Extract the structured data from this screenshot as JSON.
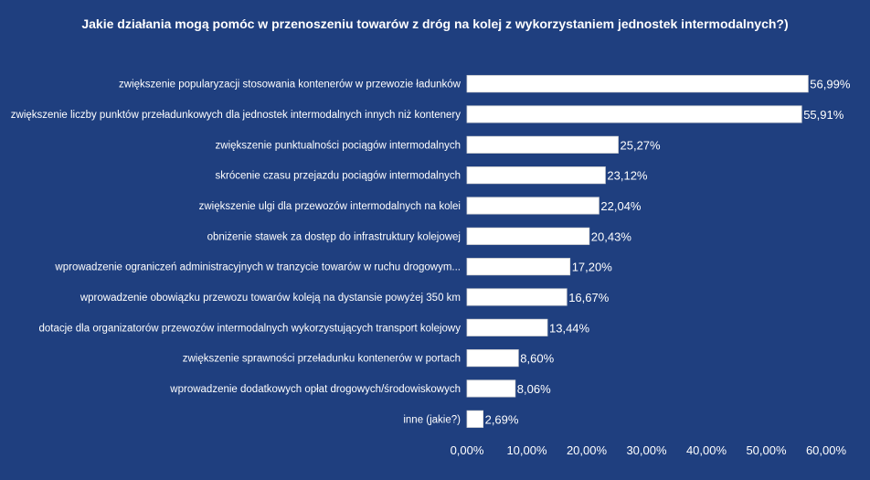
{
  "chart_data": {
    "type": "bar",
    "orientation": "horizontal",
    "title": "Jakie działania mogą pomóc w przenoszeniu towarów z dróg na kolej z wykorzystaniem jednostek intermodalnych?)",
    "categories": [
      "zwiększenie popularyzacji stosowania kontenerów w przewozie ładunków",
      "zwiększenie liczby punktów przeładunkowych dla jednostek intermodalnych innych niż kontenery",
      "zwiększenie punktualności pociągów intermodalnych",
      "skrócenie czasu przejazdu pociągów intermodalnych",
      "zwiększenie ulgi dla przewozów intermodalnych na kolei",
      "obniżenie stawek za dostęp do infrastruktury kolejowej",
      "wprowadzenie ograniczeń administracyjnych w tranzycie towarów w ruchu drogowym...",
      "wprowadzenie obowiązku przewozu towarów koleją na dystansie powyżej 350 km",
      "dotacje dla organizatorów przewozów intermodalnych wykorzystujących transport kolejowy",
      "zwiększenie sprawności przeładunku kontenerów w portach",
      "wprowadzenie dodatkowych opłat drogowych/środowiskowych",
      "inne (jakie?)"
    ],
    "values": [
      56.99,
      55.91,
      25.27,
      23.12,
      22.04,
      20.43,
      17.2,
      16.67,
      13.44,
      8.6,
      8.06,
      2.69
    ],
    "value_labels": [
      "56,99%",
      "55,91%",
      "25,27%",
      "23,12%",
      "22,04%",
      "20,43%",
      "17,20%",
      "16,67%",
      "13,44%",
      "8,60%",
      "8,06%",
      "2,69%"
    ],
    "xlim": [
      0,
      60
    ],
    "x_ticks": [
      0,
      10,
      20,
      30,
      40,
      50,
      60
    ],
    "x_tick_labels": [
      "0,00%",
      "10,00%",
      "20,00%",
      "30,00%",
      "40,00%",
      "50,00%",
      "60,00%"
    ],
    "xlabel": "",
    "ylabel": "",
    "grid": false,
    "legend": "none",
    "colors": {
      "background": "#1f3f7f",
      "bar": "#ffffff",
      "text": "#ffffff"
    }
  }
}
